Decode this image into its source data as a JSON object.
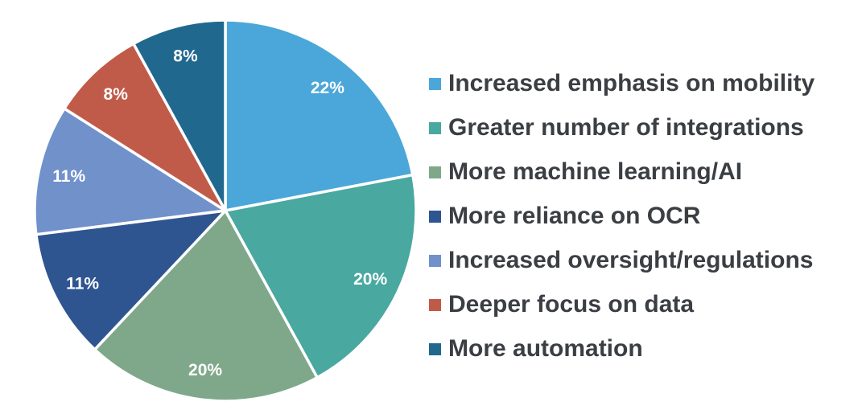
{
  "page": {
    "background_color": "#ffffff"
  },
  "chart_data": {
    "type": "pie",
    "title": "",
    "start_angle_deg": 0,
    "direction": "clockwise",
    "legend_position": "right",
    "value_label_color": "#ffffff",
    "legend_text_color": "#3b3e42",
    "separator_color": "#ffffff",
    "slices": [
      {
        "label": "Increased emphasis on mobility",
        "value": 22,
        "display": "22%",
        "color": "#4ba7d9"
      },
      {
        "label": "Greater number of integrations",
        "value": 20,
        "display": "20%",
        "color": "#49a8a0"
      },
      {
        "label": "More machine learning/AI",
        "value": 20,
        "display": "20%",
        "color": "#7fa88b"
      },
      {
        "label": "More reliance on OCR",
        "value": 11,
        "display": "11%",
        "color": "#2f5591"
      },
      {
        "label": "Increased oversight/regulations",
        "value": 11,
        "display": "11%",
        "color": "#7191cb"
      },
      {
        "label": "Deeper focus on data",
        "value": 8,
        "display": "8%",
        "color": "#c15b49"
      },
      {
        "label": "More automation",
        "value": 8,
        "display": "8%",
        "color": "#21688f"
      }
    ]
  }
}
